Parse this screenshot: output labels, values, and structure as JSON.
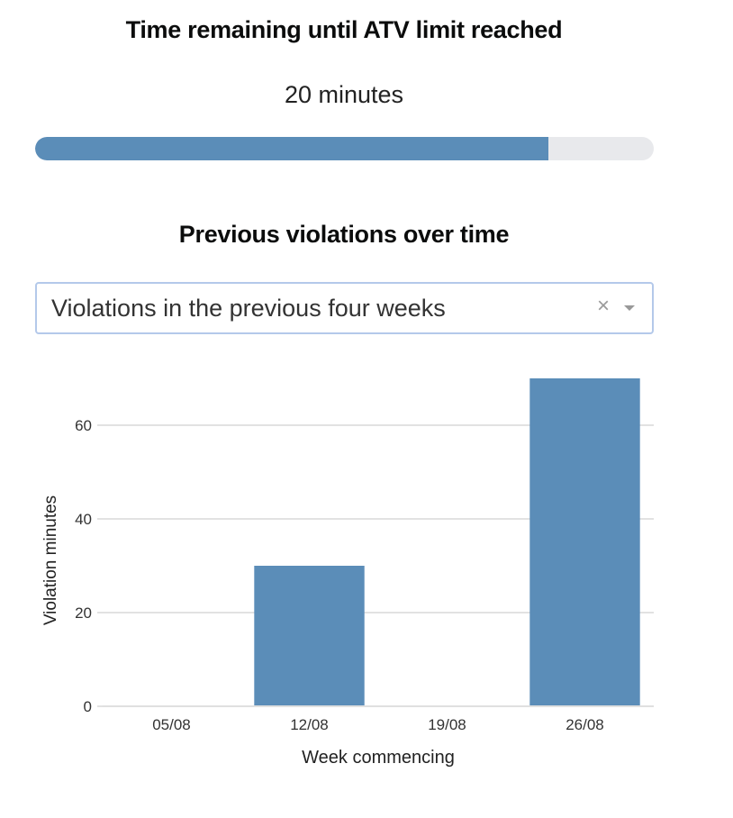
{
  "atv": {
    "title": "Time remaining until ATV limit reached",
    "remaining_text": "20 minutes",
    "progress_fraction": 0.83,
    "progress_color": "#5b8db8",
    "track_color": "#e8e9ec"
  },
  "violations": {
    "title": "Previous violations over time",
    "range_select": {
      "selected": "Violations in the previous four weeks",
      "clear_icon": "close-icon",
      "dropdown_icon": "chevron-down-icon",
      "clear_glyph": "×"
    }
  },
  "chart_data": {
    "type": "bar",
    "categories": [
      "05/08",
      "12/08",
      "19/08",
      "26/08"
    ],
    "values": [
      0,
      30,
      0,
      70
    ],
    "xlabel": "Week commencing",
    "ylabel": "Violation minutes",
    "yticks": [
      0,
      20,
      40,
      60
    ],
    "ylim": [
      0,
      70
    ],
    "grid": true,
    "bar_color": "#5b8db8"
  }
}
